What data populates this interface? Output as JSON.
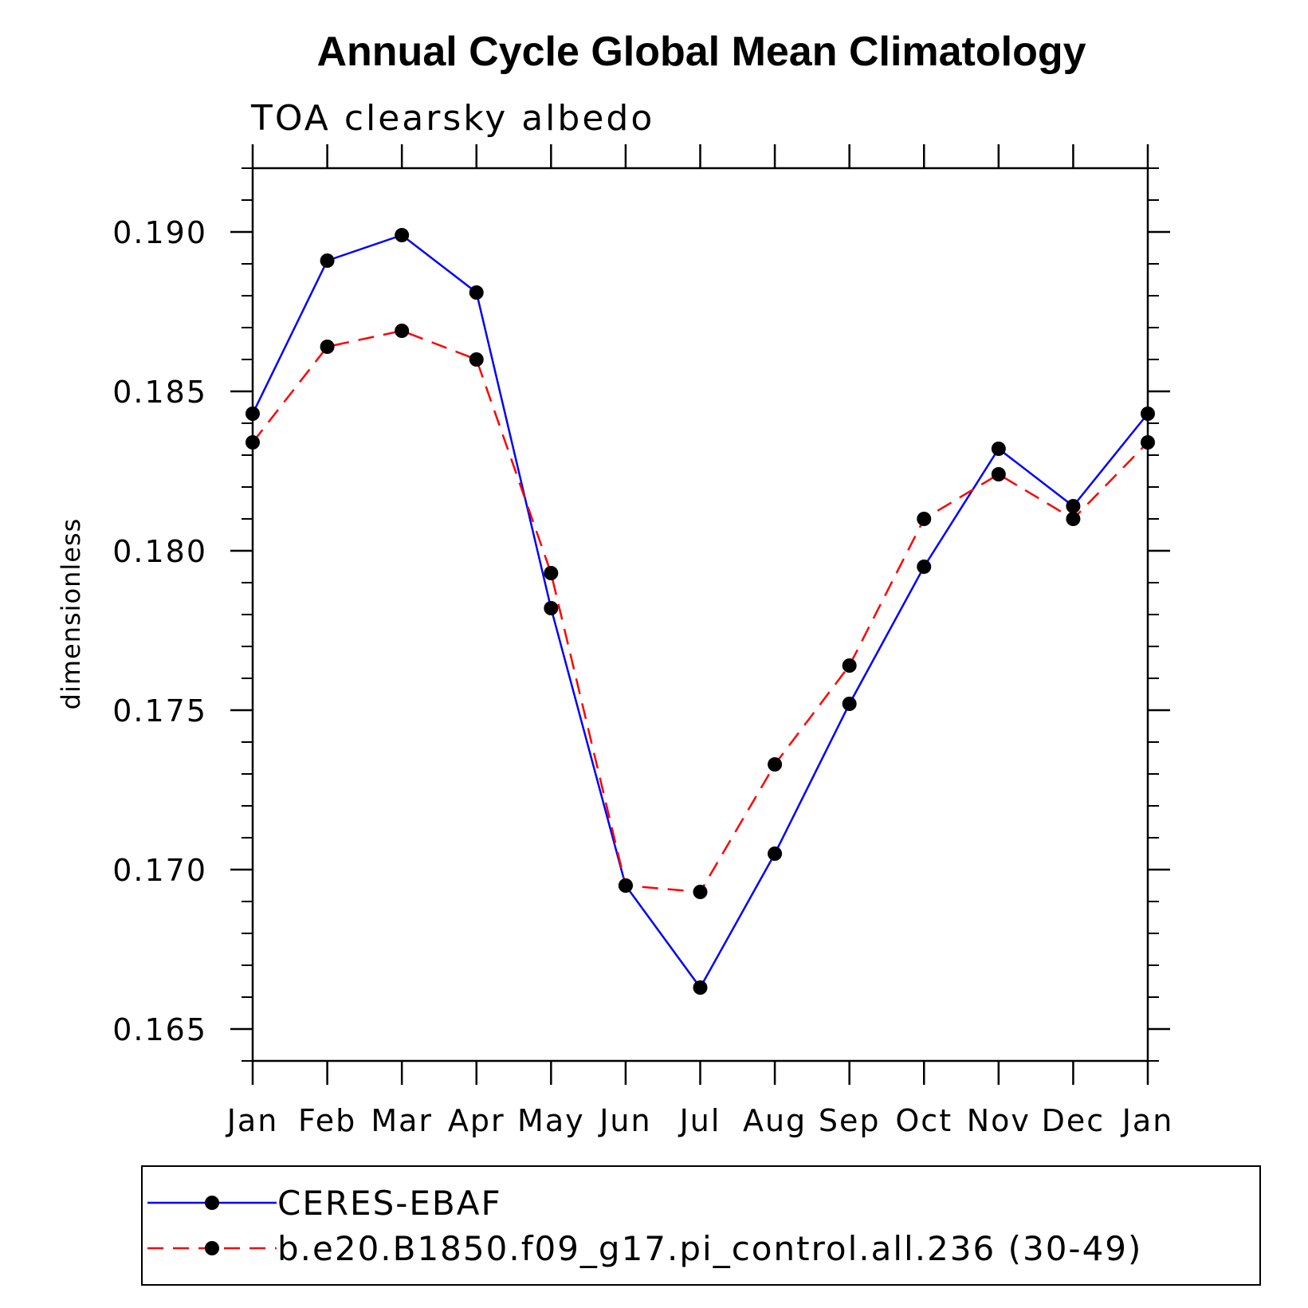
{
  "chart_data": {
    "type": "line",
    "title": "Annual Cycle Global Mean Climatology",
    "subtitle": "TOA clearsky albedo",
    "xlabel": "",
    "ylabel": "dimensionless",
    "categories": [
      "Jan",
      "Feb",
      "Mar",
      "Apr",
      "May",
      "Jun",
      "Jul",
      "Aug",
      "Sep",
      "Oct",
      "Nov",
      "Dec",
      "Jan"
    ],
    "ylim": [
      0.164,
      0.192
    ],
    "yticks": [
      0.165,
      0.17,
      0.175,
      0.18,
      0.185,
      0.19
    ],
    "ytick_labels": [
      "0.165",
      "0.170",
      "0.175",
      "0.180",
      "0.185",
      "0.190"
    ],
    "legend_position": "bottom",
    "series": [
      {
        "name": "CERES-EBAF",
        "color": "#0000ff",
        "dash": "solid",
        "marker": "circle",
        "values": [
          0.1843,
          0.1891,
          0.1899,
          0.1881,
          0.1782,
          0.1695,
          0.1663,
          0.1705,
          0.1752,
          0.1795,
          0.1832,
          0.1814,
          0.1843
        ]
      },
      {
        "name": "b.e20.B1850.f09_g17.pi_control.all.236 (30-49)",
        "color": "#ff0000",
        "dash": "dashed",
        "marker": "circle",
        "values": [
          0.1834,
          0.1864,
          0.1869,
          0.186,
          0.1793,
          0.1695,
          0.1693,
          0.1733,
          0.1764,
          0.181,
          0.1824,
          0.181,
          0.1834
        ]
      }
    ]
  }
}
